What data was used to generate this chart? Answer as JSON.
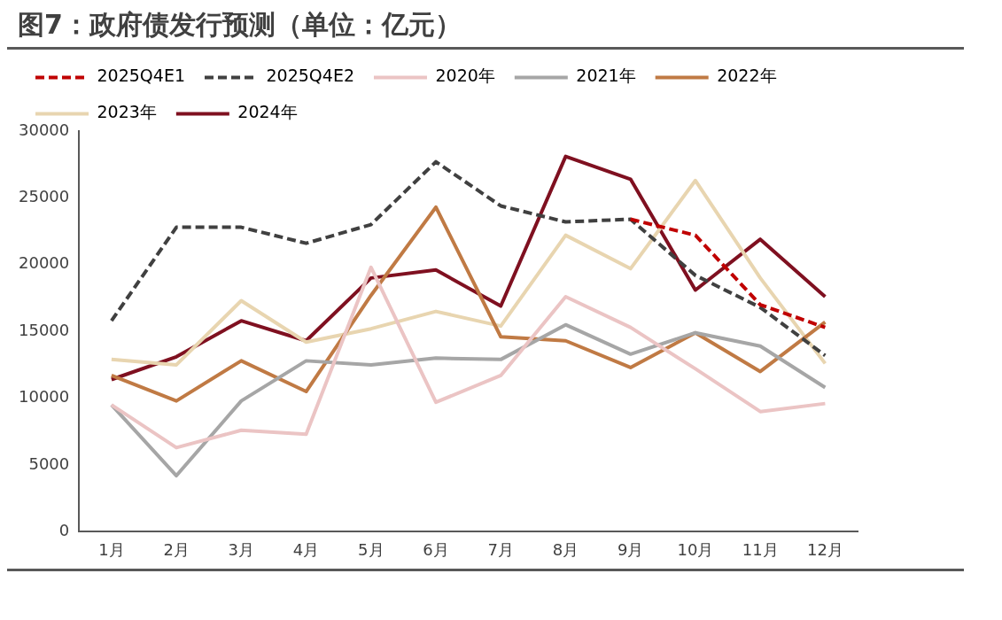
{
  "chart_data": {
    "type": "line",
    "title": "图7：政府债发行预测（单位：亿元）",
    "categories": [
      "1月",
      "2月",
      "3月",
      "4月",
      "5月",
      "6月",
      "7月",
      "8月",
      "9月",
      "10月",
      "11月",
      "12月"
    ],
    "series": [
      {
        "name": "2025Q4E1",
        "color": "#c00000",
        "line_style": "dashed",
        "values": [
          null,
          null,
          null,
          null,
          null,
          null,
          null,
          null,
          23400,
          22200,
          17000,
          15300
        ]
      },
      {
        "name": "2025Q4E2",
        "color": "#404040",
        "line_style": "dashed",
        "values": [
          15800,
          22800,
          22800,
          21600,
          23000,
          27700,
          24400,
          23200,
          23400,
          19200,
          16800,
          13200
        ]
      },
      {
        "name": "2020年",
        "color": "#ebc4c4",
        "line_style": "solid",
        "values": [
          9500,
          6300,
          7600,
          7300,
          19800,
          9700,
          11700,
          17600,
          15300,
          12200,
          9000,
          9600
        ]
      },
      {
        "name": "2021年",
        "color": "#a6a6a6",
        "line_style": "solid",
        "values": [
          9500,
          4200,
          9800,
          12800,
          12500,
          13000,
          12900,
          15500,
          13300,
          14900,
          13900,
          10800
        ]
      },
      {
        "name": "2022年",
        "color": "#c07a44",
        "line_style": "solid",
        "values": [
          11700,
          9800,
          12800,
          10500,
          17700,
          24300,
          14600,
          14300,
          12300,
          14900,
          12000,
          15700
        ]
      },
      {
        "name": "2023年",
        "color": "#e8d5b0",
        "line_style": "solid",
        "values": [
          12900,
          12500,
          17300,
          14200,
          15200,
          16500,
          15400,
          22200,
          19700,
          26300,
          19000,
          12600
        ]
      },
      {
        "name": "2024年",
        "color": "#7f1020",
        "line_style": "solid",
        "values": [
          11400,
          13100,
          15800,
          14300,
          19000,
          19600,
          16900,
          28100,
          26400,
          18100,
          21900,
          17600
        ]
      }
    ],
    "ylim": [
      0,
      30000
    ],
    "yticks": [
      0,
      5000,
      10000,
      15000,
      20000,
      25000,
      30000
    ],
    "grid": false,
    "legend": "top",
    "marker": "none"
  }
}
